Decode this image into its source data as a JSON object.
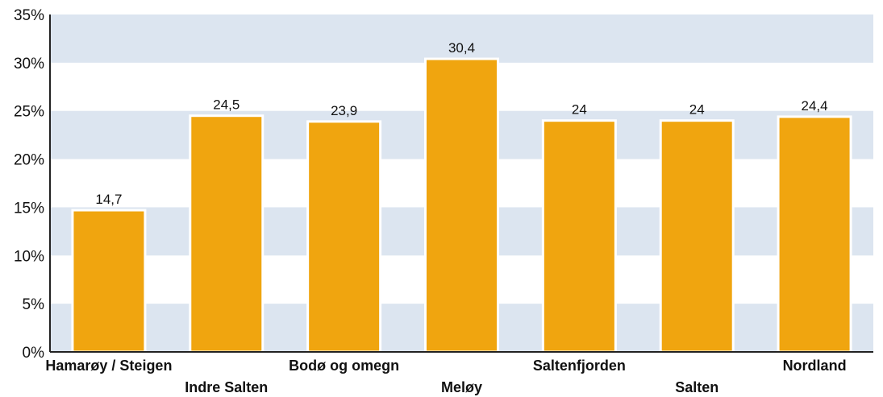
{
  "chart_data": {
    "type": "bar",
    "title": "",
    "xlabel": "",
    "ylabel": "",
    "categories": [
      "Hamarøy / Steigen",
      "Indre Salten",
      "Bodø og omegn",
      "Meløy",
      "Saltenfjorden",
      "Salten",
      "Nordland"
    ],
    "values": [
      14.7,
      24.5,
      23.9,
      30.4,
      24,
      24,
      24.4
    ],
    "data_labels": [
      "14,7",
      "24,5",
      "23,9",
      "30,4",
      "24",
      "24",
      "24,4"
    ],
    "ylim": [
      0,
      35
    ],
    "y_ticks": [
      0,
      5,
      10,
      15,
      20,
      25,
      30,
      35
    ],
    "y_tick_labels": [
      "0%",
      "5%",
      "10%",
      "15%",
      "20%",
      "25%",
      "30%",
      "35%"
    ],
    "grid": "alternating horizontal bands",
    "legend": "none",
    "colors": {
      "bar": "#f0a50f",
      "bar_outline": "#ffffff",
      "band": "#dce5f0",
      "axis": "#222222"
    }
  }
}
